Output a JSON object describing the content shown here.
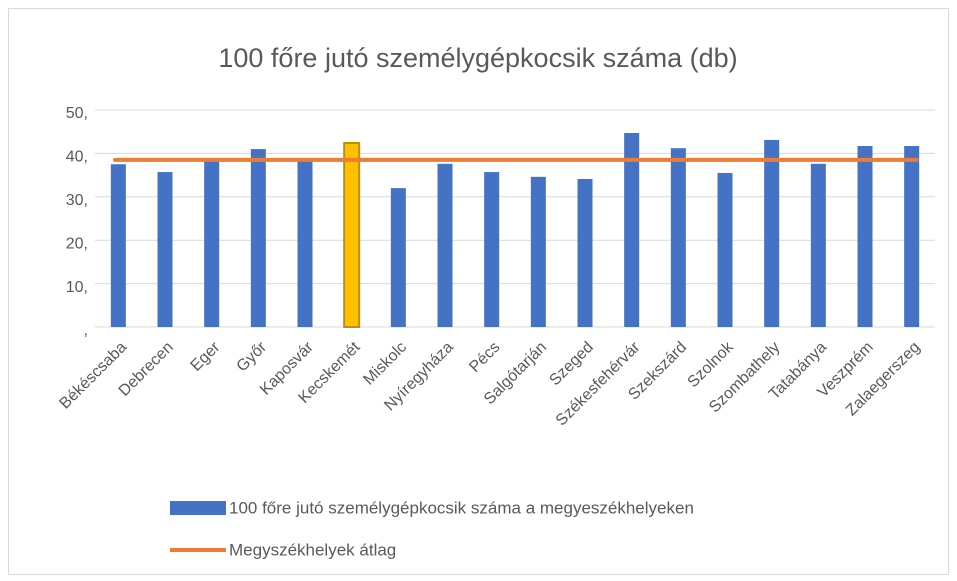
{
  "chart_data": {
    "type": "bar",
    "title": "100 főre jutó személygépkocsik száma (db)",
    "categories": [
      "Békéscsaba",
      "Debrecen",
      "Eger",
      "Győr",
      "Kaposvár",
      "Kecskemét",
      "Miskolc",
      "Nyíregyháza",
      "Pécs",
      "Salgótarján",
      "Szeged",
      "Székesfehérvár",
      "Szekszárd",
      "Szolnok",
      "Szombathely",
      "Tatabánya",
      "Veszprém",
      "Zalaegerszeg"
    ],
    "series": [
      {
        "name": "100 főre jutó személygépkocsik száma a megyeszékhelyeken",
        "type": "bar",
        "color": "#4472c4",
        "values": [
          37.5,
          35.7,
          38.2,
          41.0,
          38.5,
          42.4,
          32.0,
          37.6,
          35.7,
          34.6,
          34.1,
          44.7,
          41.2,
          35.5,
          43.1,
          37.6,
          41.7,
          41.7
        ],
        "colors": [
          "#4472c4",
          "#4472c4",
          "#4472c4",
          "#4472c4",
          "#4472c4",
          "#ffc000",
          "#4472c4",
          "#4472c4",
          "#4472c4",
          "#4472c4",
          "#4472c4",
          "#4472c4",
          "#4472c4",
          "#4472c4",
          "#4472c4",
          "#4472c4",
          "#4472c4",
          "#4472c4"
        ],
        "edge_colors": [
          null,
          null,
          null,
          null,
          null,
          "#bf9000",
          null,
          null,
          null,
          null,
          null,
          null,
          null,
          null,
          null,
          null,
          null,
          null
        ]
      },
      {
        "name": "Megyszékhelyek átlag",
        "type": "line",
        "color": "#ed7d31",
        "values": [
          38.5,
          38.5,
          38.5,
          38.5,
          38.5,
          38.5,
          38.5,
          38.5,
          38.5,
          38.5,
          38.5,
          38.5,
          38.5,
          38.5,
          38.5,
          38.5,
          38.5,
          38.5
        ]
      }
    ],
    "ylim": [
      0,
      50
    ],
    "yticks": [
      {
        "value": 0,
        "label": ","
      },
      {
        "value": 10,
        "label": "10,"
      },
      {
        "value": 20,
        "label": "20,"
      },
      {
        "value": 30,
        "label": "30,"
      },
      {
        "value": 40,
        "label": "40,"
      },
      {
        "value": 50,
        "label": "50,"
      }
    ],
    "grid": true,
    "legend": "bottom"
  }
}
